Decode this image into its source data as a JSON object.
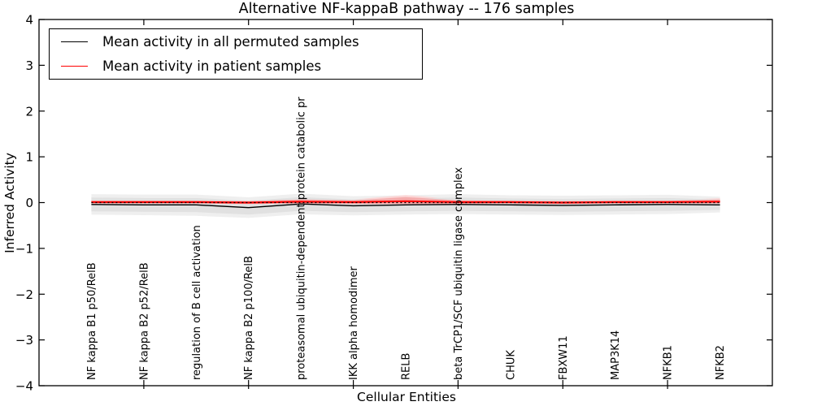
{
  "figure": {
    "title": "Alternative NF-kappaB pathway -- 176 samples",
    "xlabel": "Cellular Entities",
    "ylabel": "Inferred Activity"
  },
  "legend": {
    "position": "upper left",
    "items": [
      {
        "label": "Mean activity in all permuted samples",
        "color": "#000000"
      },
      {
        "label": "Mean activity in patient samples",
        "color": "#ff0000"
      }
    ]
  },
  "chart_data": {
    "type": "line",
    "title": "Alternative NF-kappaB pathway -- 176 samples",
    "xlabel": "Cellular Entities",
    "ylabel": "Inferred Activity",
    "ylim": [
      -4,
      4
    ],
    "xlim": [
      0,
      14
    ],
    "yticks": [
      -4,
      -3,
      -2,
      -1,
      0,
      1,
      2,
      3,
      4
    ],
    "xticks": [
      2,
      4,
      6,
      8,
      10,
      12
    ],
    "xtick_numeric_labels_shown": false,
    "grid": false,
    "legend_position": "upper left",
    "categories": [
      "NF kappa B1 p50/RelB",
      "NF kappa B2 p52/RelB",
      "regulation of B cell activation",
      "NF kappa B2 p100/RelB",
      "proteasomal ubiquitin-dependent protein catabolic pr",
      "IKK alpha homodimer",
      "RELB",
      "beta TrCP1/SCF ubiquitin ligase complex",
      "CHUK",
      "FBXW11",
      "MAP3K14",
      "NFKB1",
      "NFKB2"
    ],
    "series": [
      {
        "name": "Mean activity in all permuted samples",
        "color": "#000000",
        "line_style": "solid",
        "values": [
          -0.04,
          -0.05,
          -0.05,
          -0.11,
          -0.03,
          -0.07,
          -0.05,
          -0.04,
          -0.05,
          -0.06,
          -0.05,
          -0.04,
          -0.05
        ],
        "band_upper": [
          0.11,
          0.1,
          0.1,
          0.04,
          0.12,
          0.07,
          0.09,
          0.11,
          0.09,
          0.08,
          0.09,
          0.1,
          0.07
        ],
        "band_lower": [
          -0.19,
          -0.2,
          -0.21,
          -0.26,
          -0.18,
          -0.21,
          -0.19,
          -0.18,
          -0.19,
          -0.2,
          -0.19,
          -0.18,
          -0.16
        ],
        "band_color": "#e1e1e1",
        "band_outer_color": "#efefef"
      },
      {
        "name": "Mean activity in patient samples",
        "color": "#ff0000",
        "line_style": "solid",
        "values": [
          0.01,
          0.01,
          0.01,
          0.0,
          0.02,
          0.01,
          0.03,
          0.01,
          0.01,
          0.0,
          0.01,
          0.01,
          0.02
        ],
        "band_upper": [
          0.04,
          0.04,
          0.04,
          0.03,
          0.07,
          0.05,
          0.12,
          0.05,
          0.04,
          0.03,
          0.04,
          0.04,
          0.07
        ],
        "band_lower": [
          -0.02,
          -0.02,
          -0.02,
          -0.03,
          -0.02,
          -0.03,
          -0.03,
          -0.03,
          -0.02,
          -0.03,
          -0.02,
          -0.02,
          -0.02
        ],
        "band_color": "#f5acac",
        "band_outer_color": "#fbd6d6"
      }
    ],
    "reference_line": {
      "y": 0,
      "style": "dotted",
      "color": "#000000"
    }
  }
}
